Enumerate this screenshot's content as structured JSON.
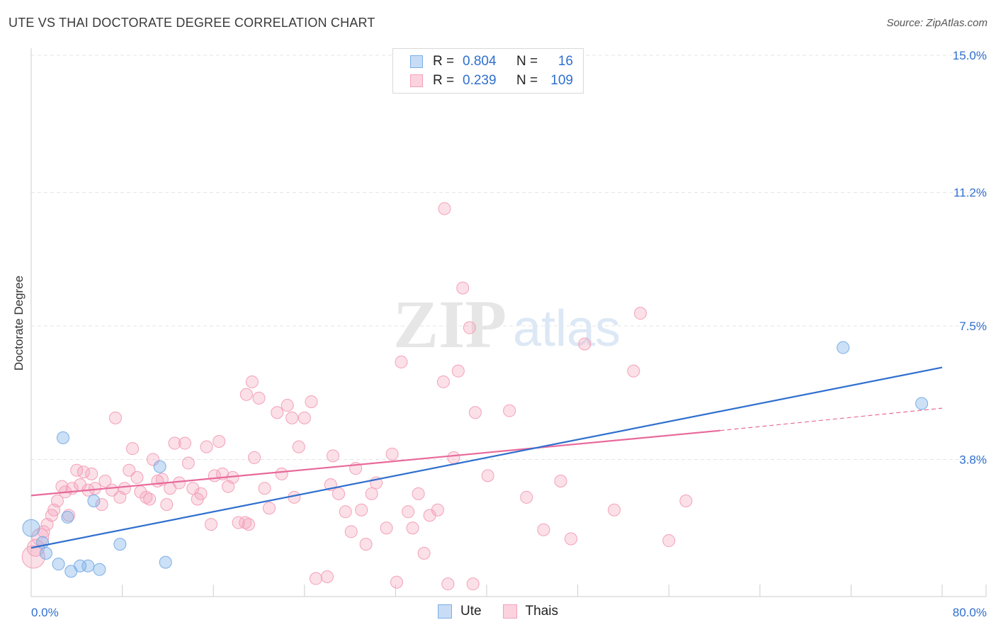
{
  "chart_data": {
    "type": "scatter",
    "title": "UTE VS THAI DOCTORATE DEGREE CORRELATION CHART",
    "source": "Source: ZipAtlas.com",
    "xlabel": "",
    "ylabel": "Doctorate Degree",
    "xlim": [
      0,
      80
    ],
    "ylim": [
      0,
      15
    ],
    "x_tick_labels": [
      "0.0%",
      "80.0%"
    ],
    "y_tick_values": [
      3.8,
      7.5,
      11.2,
      15.0
    ],
    "y_tick_labels": [
      "3.8%",
      "7.5%",
      "11.2%",
      "15.0%"
    ],
    "watermark": {
      "zip": "ZIP",
      "atlas": "atlas"
    },
    "colors": {
      "ute": "#7aaee8",
      "thai": "#f4a0b8",
      "ute_line": "#2f6fce",
      "thai_line": "#e8699a",
      "value_text": "#2f6fce"
    },
    "legend": {
      "r_label": "R =",
      "n_label": "N =",
      "entries": [
        {
          "name": "Ute",
          "r": "0.804",
          "n": "16"
        },
        {
          "name": "Thais",
          "r": "0.239",
          "n": "109"
        }
      ]
    },
    "series": [
      {
        "name": "Ute",
        "trend": {
          "x0": 0,
          "y0": 1.35,
          "x1": 80,
          "y1": 6.35
        },
        "points": [
          [
            0.0,
            1.9
          ],
          [
            1.0,
            1.5
          ],
          [
            1.3,
            1.2
          ],
          [
            2.8,
            4.4
          ],
          [
            3.2,
            2.2
          ],
          [
            3.5,
            0.7
          ],
          [
            2.4,
            0.9
          ],
          [
            4.3,
            0.85
          ],
          [
            5.0,
            0.85
          ],
          [
            5.5,
            2.65
          ],
          [
            6.0,
            0.75
          ],
          [
            7.8,
            1.45
          ],
          [
            11.3,
            3.6
          ],
          [
            11.8,
            0.95
          ],
          [
            71.3,
            6.9
          ],
          [
            78.2,
            5.35
          ]
        ]
      },
      {
        "name": "Thais",
        "trend": {
          "x0": 0,
          "y0": 2.8,
          "x1": 60.5,
          "y1": 4.6,
          "dash_x1": 80,
          "dash_y1": 5.22
        },
        "points": [
          [
            0.2,
            1.1
          ],
          [
            0.4,
            1.35
          ],
          [
            0.8,
            1.65
          ],
          [
            1.1,
            1.8
          ],
          [
            1.4,
            2.0
          ],
          [
            1.8,
            2.25
          ],
          [
            2.0,
            2.4
          ],
          [
            2.3,
            2.65
          ],
          [
            2.7,
            3.05
          ],
          [
            3.0,
            2.9
          ],
          [
            3.3,
            2.25
          ],
          [
            3.6,
            3.0
          ],
          [
            4.0,
            3.5
          ],
          [
            4.3,
            3.1
          ],
          [
            4.6,
            3.45
          ],
          [
            5.0,
            2.95
          ],
          [
            5.3,
            3.4
          ],
          [
            5.6,
            3.0
          ],
          [
            6.2,
            2.55
          ],
          [
            6.5,
            3.2
          ],
          [
            7.1,
            2.95
          ],
          [
            7.4,
            4.95
          ],
          [
            7.8,
            2.75
          ],
          [
            8.2,
            3.0
          ],
          [
            8.6,
            3.5
          ],
          [
            8.9,
            4.1
          ],
          [
            9.3,
            3.3
          ],
          [
            9.6,
            2.9
          ],
          [
            10.1,
            2.75
          ],
          [
            10.4,
            2.7
          ],
          [
            10.7,
            3.8
          ],
          [
            11.1,
            3.2
          ],
          [
            11.5,
            3.25
          ],
          [
            11.9,
            2.55
          ],
          [
            12.2,
            3.0
          ],
          [
            12.6,
            4.25
          ],
          [
            13.0,
            3.15
          ],
          [
            13.5,
            4.25
          ],
          [
            13.8,
            3.7
          ],
          [
            14.2,
            3.0
          ],
          [
            14.6,
            2.7
          ],
          [
            14.9,
            2.85
          ],
          [
            15.4,
            4.15
          ],
          [
            15.8,
            2.0
          ],
          [
            16.1,
            3.35
          ],
          [
            16.5,
            4.3
          ],
          [
            16.8,
            3.4
          ],
          [
            17.3,
            3.05
          ],
          [
            17.7,
            3.3
          ],
          [
            18.2,
            2.05
          ],
          [
            18.8,
            2.05
          ],
          [
            19.1,
            2.0
          ],
          [
            19.6,
            3.85
          ],
          [
            19.4,
            5.95
          ],
          [
            18.9,
            5.6
          ],
          [
            20.0,
            5.5
          ],
          [
            20.5,
            3.0
          ],
          [
            20.9,
            2.45
          ],
          [
            21.6,
            5.1
          ],
          [
            22.0,
            3.4
          ],
          [
            22.5,
            5.3
          ],
          [
            22.9,
            4.95
          ],
          [
            23.1,
            2.75
          ],
          [
            23.5,
            4.15
          ],
          [
            24.0,
            4.95
          ],
          [
            24.6,
            5.4
          ],
          [
            25.0,
            0.5
          ],
          [
            26.0,
            0.55
          ],
          [
            26.3,
            3.1
          ],
          [
            26.5,
            3.9
          ],
          [
            27.0,
            2.85
          ],
          [
            27.6,
            2.35
          ],
          [
            28.1,
            1.8
          ],
          [
            28.5,
            3.55
          ],
          [
            29.0,
            2.4
          ],
          [
            29.4,
            1.45
          ],
          [
            29.9,
            2.85
          ],
          [
            30.3,
            3.15
          ],
          [
            31.2,
            1.9
          ],
          [
            31.7,
            3.95
          ],
          [
            32.1,
            0.4
          ],
          [
            32.5,
            6.5
          ],
          [
            33.1,
            2.35
          ],
          [
            33.5,
            1.9
          ],
          [
            34.0,
            2.85
          ],
          [
            34.5,
            1.2
          ],
          [
            35.0,
            2.25
          ],
          [
            35.7,
            2.4
          ],
          [
            36.2,
            5.95
          ],
          [
            36.6,
            0.35
          ],
          [
            37.1,
            3.85
          ],
          [
            37.5,
            6.25
          ],
          [
            37.9,
            8.55
          ],
          [
            36.3,
            10.75
          ],
          [
            38.5,
            7.45
          ],
          [
            39.0,
            5.1
          ],
          [
            38.8,
            0.35
          ],
          [
            40.1,
            3.35
          ],
          [
            42.0,
            5.15
          ],
          [
            43.5,
            2.75
          ],
          [
            45.0,
            1.85
          ],
          [
            46.5,
            3.2
          ],
          [
            47.4,
            1.6
          ],
          [
            48.6,
            7.0
          ],
          [
            51.2,
            2.4
          ],
          [
            52.9,
            6.25
          ],
          [
            53.5,
            7.85
          ],
          [
            56.0,
            1.55
          ],
          [
            57.5,
            2.65
          ]
        ]
      }
    ]
  }
}
